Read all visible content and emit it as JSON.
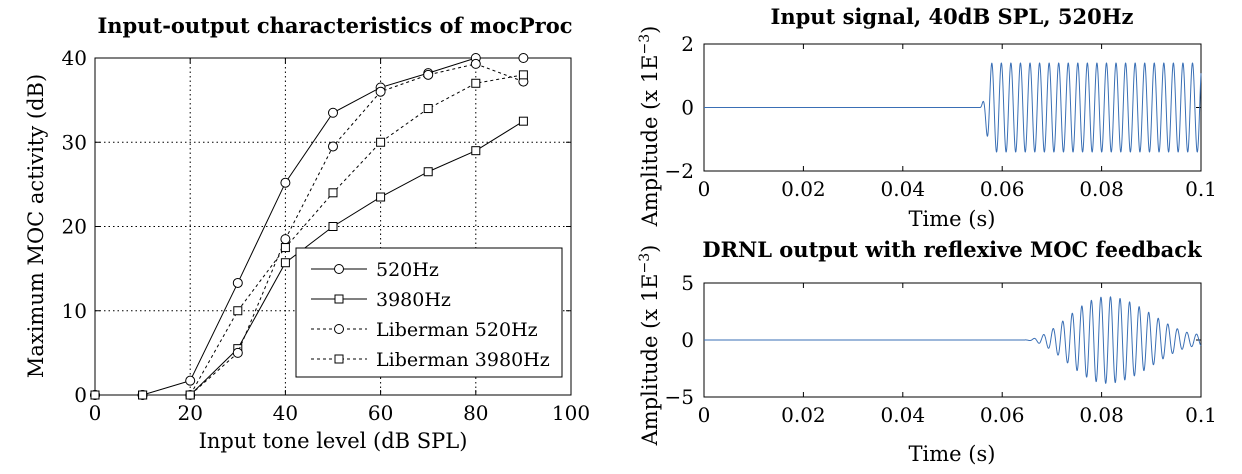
{
  "chart_data": [
    {
      "type": "line",
      "title": "Input-output characteristics of mocProc",
      "xlabel": "Input tone level (dB SPL)",
      "ylabel": "Maximum MOC activity (dB)",
      "xlim": [
        0,
        100
      ],
      "ylim": [
        0,
        40
      ],
      "xticks": [
        "0",
        "20",
        "40",
        "60",
        "80",
        "100"
      ],
      "yticks": [
        "0",
        "10",
        "20",
        "30",
        "40"
      ],
      "grid": true,
      "legend_position": "bottom-right",
      "series": [
        {
          "name": "520Hz",
          "style": "solid",
          "marker": "circle",
          "x": [
            0,
            10,
            20,
            30,
            40,
            50,
            60,
            70,
            80,
            90
          ],
          "y": [
            0,
            0,
            1.7,
            13.3,
            25.2,
            33.5,
            36.5,
            38.2,
            40,
            40
          ]
        },
        {
          "name": "3980Hz",
          "style": "solid",
          "marker": "square",
          "x": [
            0,
            10,
            20,
            30,
            40,
            50,
            60,
            70,
            80,
            90
          ],
          "y": [
            0,
            0,
            0,
            5.5,
            15.7,
            20,
            23.5,
            26.5,
            29,
            32.5
          ]
        },
        {
          "name": "Liberman 520Hz",
          "style": "dashed",
          "marker": "circle",
          "x": [
            0,
            10,
            20,
            30,
            40,
            50,
            60,
            70,
            80,
            90
          ],
          "y": [
            0,
            0,
            0,
            5,
            18.5,
            29.5,
            36,
            38,
            39.3,
            37.2
          ]
        },
        {
          "name": "Liberman 3980Hz",
          "style": "dashed",
          "marker": "square",
          "x": [
            0,
            10,
            20,
            30,
            40,
            50,
            60,
            70,
            80,
            90
          ],
          "y": [
            0,
            0,
            0,
            10,
            17.5,
            24,
            30,
            34,
            37,
            38
          ]
        }
      ]
    },
    {
      "type": "line",
      "title": "Input signal, 40dB SPL, 520Hz",
      "xlabel": "Time (s)",
      "ylabel": "Amplitude (x 1E",
      "ylabel_exponent": "−3",
      "ylabel_close": ")",
      "xlim": [
        0,
        0.1
      ],
      "ylim": [
        -2,
        2
      ],
      "xticks": [
        "0",
        "0.02",
        "0.04",
        "0.06",
        "0.08",
        "0.1"
      ],
      "yticks": [
        "2",
        "0",
        "−2"
      ],
      "line_color": "#3a6fb5",
      "signal": {
        "frequency_hz": 520,
        "onset_s": 0.0555,
        "ramp_s": 0.0025,
        "amplitude": 1.4
      }
    },
    {
      "type": "line",
      "title": "DRNL output with reflexive MOC feedback",
      "xlabel": "Time (s)",
      "ylabel": "Amplitude (x 1E",
      "ylabel_exponent": "−3",
      "ylabel_close": ")",
      "xlim": [
        0,
        0.1
      ],
      "ylim": [
        -5,
        5
      ],
      "xticks": [
        "0",
        "0.02",
        "0.04",
        "0.06",
        "0.08",
        "0.1"
      ],
      "yticks": [
        "5",
        "0",
        "−5"
      ],
      "line_color": "#3a6fb5",
      "signal": {
        "frequency_hz": 520,
        "onset_s": 0.064,
        "peak_s": 0.081,
        "peak_amplitude": 3.8,
        "end_amplitude": 0.5
      }
    }
  ]
}
